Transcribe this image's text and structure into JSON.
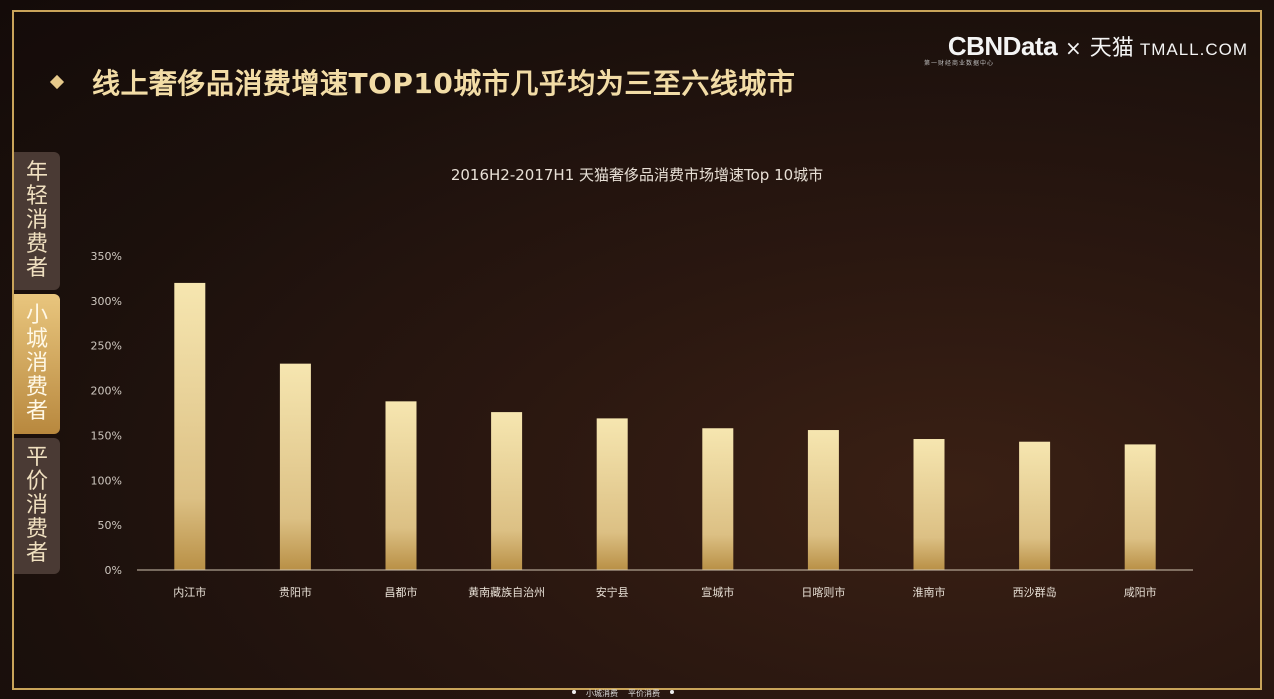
{
  "header": {
    "title": "线上奢侈品消费增速TOP10城市几乎均为三至六线城市",
    "brand_cbn": "CBNData",
    "brand_x": "×",
    "brand_tm": "天猫",
    "brand_tmall": "TMALL.COM",
    "brand_sub": "第一财经商业数据中心"
  },
  "side_tabs": [
    {
      "label": "年轻消费者",
      "active": false
    },
    {
      "label": "小城消费者",
      "active": true
    },
    {
      "label": "平价消费者",
      "active": false
    }
  ],
  "colors": {
    "bar_top": "#f4e4ad",
    "bar_bottom": "#c9a24a",
    "accent": "#c9a45a",
    "text": "#e8e0d6"
  },
  "chart_data": {
    "type": "bar",
    "title": "2016H2-2017H1 天猫奢侈品消费市场增速Top 10城市",
    "categories": [
      "内江市",
      "贵阳市",
      "昌都市",
      "黄南藏族自治州",
      "安宁县",
      "宣城市",
      "日喀则市",
      "淮南市",
      "西沙群岛",
      "咸阳市"
    ],
    "values": [
      320,
      230,
      188,
      176,
      169,
      158,
      156,
      146,
      143,
      140
    ],
    "yticks": [
      "0%",
      "50%",
      "100%",
      "150%",
      "200%",
      "250%",
      "300%",
      "350%"
    ],
    "ylim": [
      0,
      350
    ],
    "grid": false,
    "legend": "none"
  },
  "footer": {
    "left": "小城消费",
    "right": "平价消费"
  }
}
